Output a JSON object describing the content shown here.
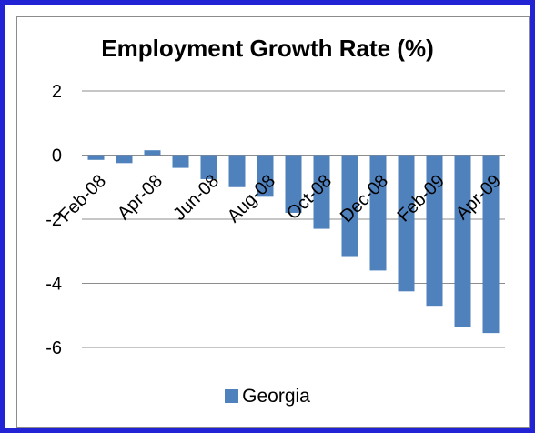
{
  "chart_data": {
    "type": "bar",
    "title": "Employment Growth Rate (%)",
    "xlabel": "",
    "ylabel": "",
    "ylim": [
      -6,
      2
    ],
    "yticks": [
      2,
      0,
      -2,
      -4,
      -6
    ],
    "grid": true,
    "legend_position": "bottom",
    "tick_labels": [
      "Feb-08",
      "Apr-08",
      "Jun-08",
      "Aug-08",
      "Oct-08",
      "Dec-08",
      "Feb-09",
      "Apr-09"
    ],
    "series": [
      {
        "name": "Georgia",
        "color": "#4f81bd",
        "values": [
          -0.15,
          -0.25,
          0.15,
          -0.4,
          -0.75,
          -1.0,
          -1.3,
          -1.8,
          -2.3,
          -3.15,
          -3.6,
          -4.25,
          -4.7,
          -5.35,
          -5.55
        ]
      }
    ]
  }
}
